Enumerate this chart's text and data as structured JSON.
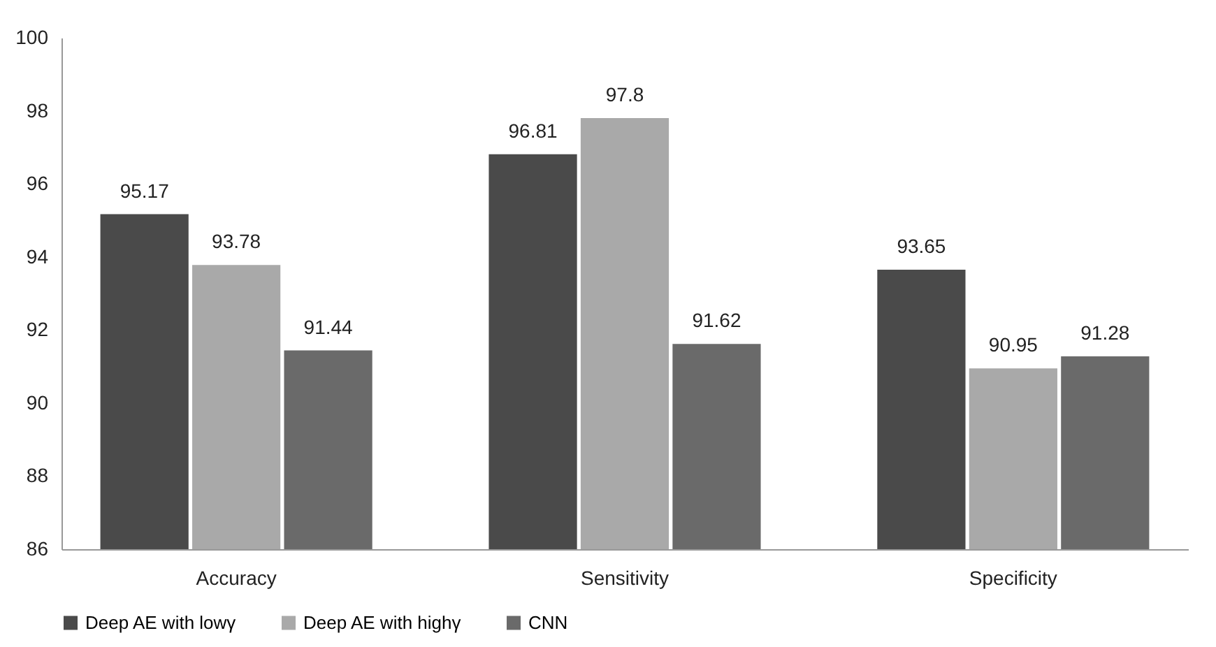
{
  "chart_data": {
    "type": "bar",
    "categories": [
      "Accuracy",
      "Sensitivity",
      "Specificity"
    ],
    "series": [
      {
        "name": "Deep AE with lowγ",
        "color": "#4a4a4a",
        "values": [
          95.17,
          96.81,
          93.65
        ]
      },
      {
        "name": "Deep AE with highγ",
        "color": "#a9a9a9",
        "values": [
          93.78,
          97.8,
          90.95
        ]
      },
      {
        "name": "CNN",
        "color": "#6a6a6a",
        "values": [
          91.44,
          91.62,
          91.28
        ]
      }
    ],
    "ylim": [
      86,
      100
    ],
    "yticks": [
      86,
      88,
      90,
      92,
      94,
      96,
      98,
      100
    ],
    "grid": false,
    "legend": "bottom",
    "data_labels": true
  }
}
